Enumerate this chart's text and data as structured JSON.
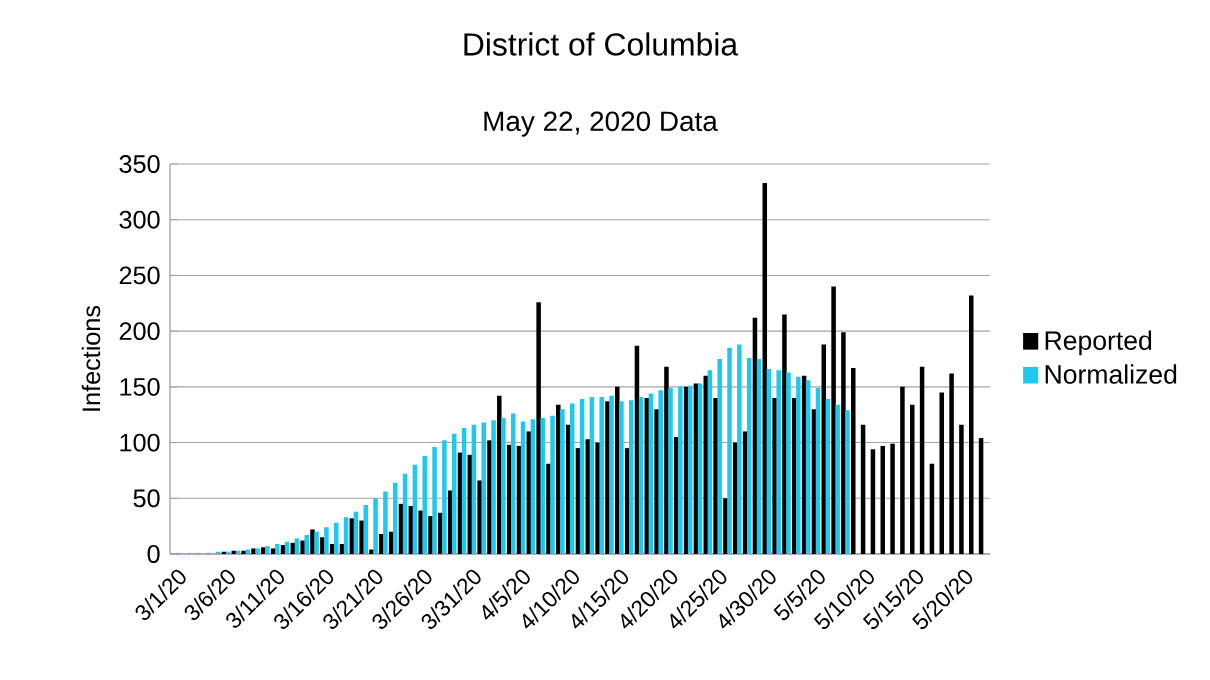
{
  "chart_data": {
    "type": "bar",
    "title": "District of Columbia",
    "subtitle": "May 22, 2020 Data",
    "ylabel": "Infections",
    "categories": [
      "3/1/20",
      null,
      null,
      null,
      null,
      "3/6/20",
      null,
      null,
      null,
      null,
      "3/11/20",
      null,
      null,
      null,
      null,
      "3/16/20",
      null,
      null,
      null,
      null,
      "3/21/20",
      null,
      null,
      null,
      null,
      "3/26/20",
      null,
      null,
      null,
      null,
      "3/31/20",
      null,
      null,
      null,
      null,
      "4/5/20",
      null,
      null,
      null,
      null,
      "4/10/20",
      null,
      null,
      null,
      null,
      "4/15/20",
      null,
      null,
      null,
      null,
      "4/20/20",
      null,
      null,
      null,
      null,
      "4/25/20",
      null,
      null,
      null,
      null,
      "4/30/20",
      null,
      null,
      null,
      null,
      "5/5/20",
      null,
      null,
      null,
      null,
      "5/10/20",
      null,
      null,
      null,
      null,
      "5/15/20",
      null,
      null,
      null,
      null,
      "5/20/20",
      null,
      null
    ],
    "series": [
      {
        "name": "Reported",
        "color": "#000000",
        "values": [
          0,
          null,
          0,
          null,
          null,
          2,
          3,
          3,
          5,
          6,
          5,
          8,
          10,
          12,
          22,
          15,
          9,
          9,
          32,
          30,
          4,
          18,
          20,
          45,
          43,
          39,
          34,
          37,
          57,
          91,
          89,
          66,
          102,
          142,
          98,
          97,
          110,
          226,
          81,
          134,
          116,
          95,
          103,
          100,
          137,
          150,
          95,
          187,
          140,
          130,
          168,
          105,
          150,
          153,
          160,
          140,
          50,
          100,
          110,
          212,
          333,
          140,
          215,
          140,
          160,
          130,
          188,
          240,
          199,
          167,
          116,
          94,
          97,
          99,
          150,
          134,
          168,
          81,
          145,
          162,
          116,
          232,
          104
        ]
      },
      {
        "name": "Normalized",
        "color": "#1ec8ee",
        "values": [
          1,
          1,
          1,
          1,
          2,
          2,
          3,
          4,
          5,
          7,
          9,
          11,
          14,
          17,
          20,
          24,
          28,
          33,
          38,
          44,
          50,
          56,
          64,
          72,
          80,
          88,
          96,
          102,
          108,
          113,
          116,
          118,
          120,
          122,
          126,
          119,
          121,
          122,
          124,
          130,
          135,
          139,
          141,
          141,
          142,
          137,
          138,
          141,
          144,
          147,
          149,
          150,
          151,
          153,
          165,
          175,
          185,
          188,
          176,
          175,
          166,
          165,
          163,
          159,
          156,
          149,
          139,
          134,
          129,
          null,
          null,
          null,
          null,
          null,
          null,
          null,
          null,
          null,
          null,
          null,
          null,
          null,
          null
        ]
      }
    ],
    "ylim": [
      0,
      350
    ],
    "yticks": [
      0,
      50,
      100,
      150,
      200,
      250,
      300,
      350
    ],
    "grid": "y",
    "legend": "right"
  }
}
